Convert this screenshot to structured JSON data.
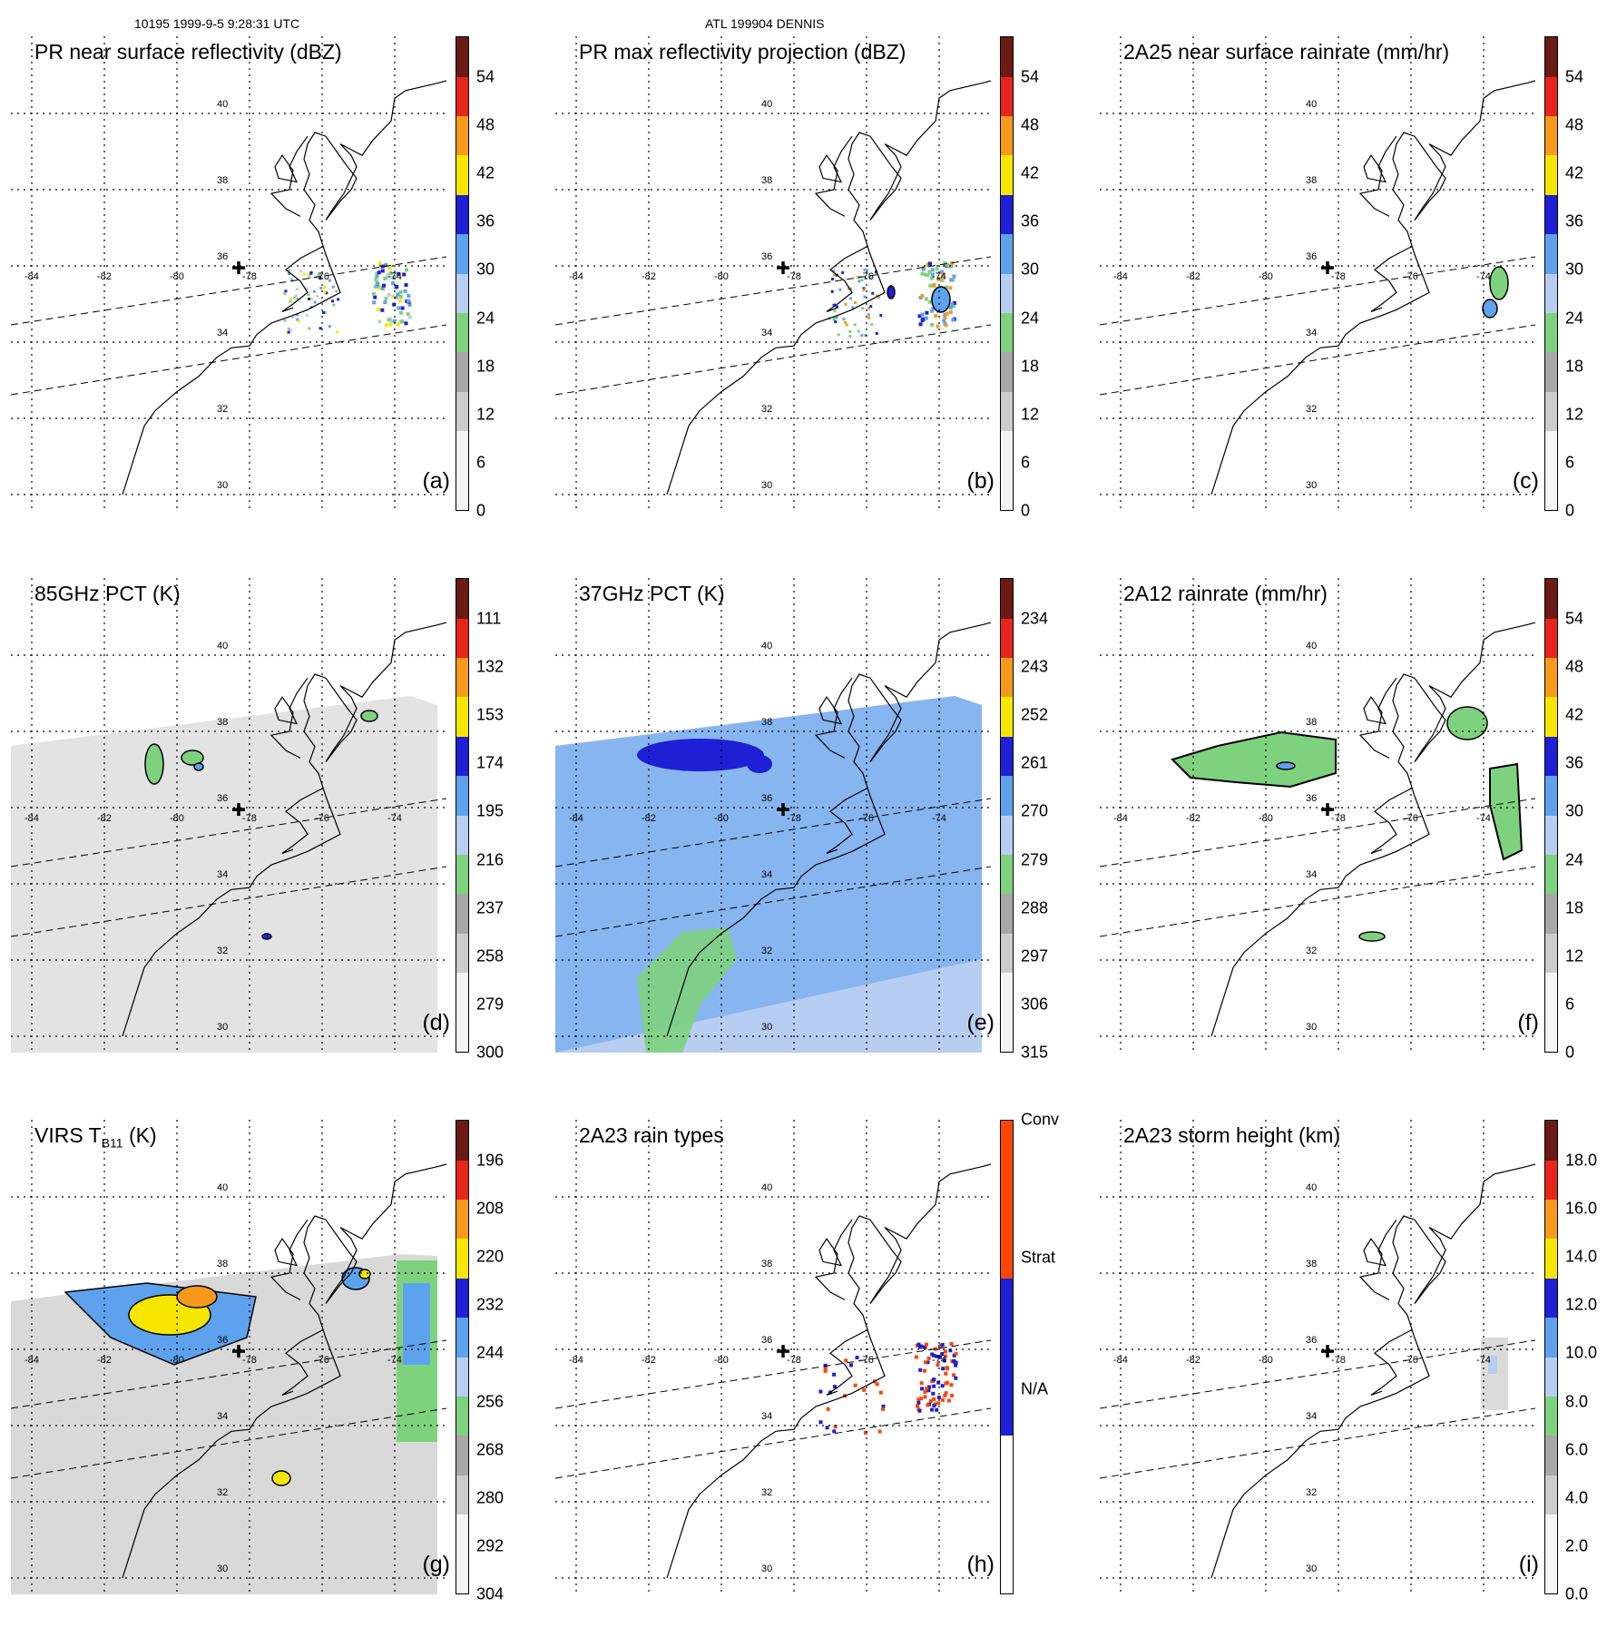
{
  "header": {
    "orbit_time": "10195 1999-9-5 9:28:31 UTC",
    "storm": "ATL 199904 DENNIS"
  },
  "map_labels": {
    "lat": [
      "40",
      "38",
      "36",
      "34",
      "32",
      "30"
    ],
    "lon": [
      "-84",
      "-82",
      "-80",
      "-78",
      "-76",
      "-74"
    ]
  },
  "colors": {
    "gray_light": "#f4f4f4",
    "gray_mid": "#cccccc",
    "gray_dark": "#a8a8a8",
    "green": "#7ed27e",
    "blue_light": "#b8cdf2",
    "blue_mid": "#5ea2ee",
    "blue_dark": "#1f1fd6",
    "yellow": "#f7e700",
    "orange": "#f79a1c",
    "red": "#e8251b",
    "dark_red": "#6b1a14",
    "conv": "#ff4500",
    "strat": "#1f1fd6"
  },
  "panels": [
    {
      "id": "a",
      "title": "PR near surface reflectivity (dBZ)",
      "label": "(a)",
      "ticks": [
        "54",
        "48",
        "42",
        "36",
        "30",
        "24",
        "18",
        "12",
        "6",
        "0"
      ]
    },
    {
      "id": "b",
      "title": "PR max reflectivity projection (dBZ)",
      "label": "(b)",
      "ticks": [
        "54",
        "48",
        "42",
        "36",
        "30",
        "24",
        "18",
        "12",
        "6",
        "0"
      ]
    },
    {
      "id": "c",
      "title": "2A25 near surface rainrate (mm/hr)",
      "label": "(c)",
      "ticks": [
        "54",
        "48",
        "42",
        "36",
        "30",
        "24",
        "18",
        "12",
        "6",
        "0"
      ]
    },
    {
      "id": "d",
      "title": "85GHz PCT (K)",
      "label": "(d)",
      "ticks": [
        "111",
        "132",
        "153",
        "174",
        "195",
        "216",
        "237",
        "258",
        "279",
        "300"
      ]
    },
    {
      "id": "e",
      "title": "37GHz PCT (K)",
      "label": "(e)",
      "ticks": [
        "234",
        "243",
        "252",
        "261",
        "270",
        "279",
        "288",
        "297",
        "306",
        "315"
      ]
    },
    {
      "id": "f",
      "title": "2A12 rainrate (mm/hr)",
      "label": "(f)",
      "ticks": [
        "54",
        "48",
        "42",
        "36",
        "30",
        "24",
        "18",
        "12",
        "6",
        "0"
      ]
    },
    {
      "id": "g",
      "title": "VIRS T",
      "title_sub": "B11",
      "title_end": " (K)",
      "label": "(g)",
      "ticks": [
        "196",
        "208",
        "220",
        "232",
        "244",
        "256",
        "268",
        "280",
        "292",
        "304"
      ]
    },
    {
      "id": "h",
      "title": "2A23 rain types",
      "label": "(h)",
      "ticks": [
        "Conv",
        "Strat",
        "N/A"
      ]
    },
    {
      "id": "i",
      "title": "2A23 storm height (km)",
      "label": "(i)",
      "ticks": [
        "18.0",
        "16.0",
        "14.0",
        "12.0",
        "10.0",
        "8.0",
        "6.0",
        "4.0",
        "2.0",
        "0.0"
      ]
    }
  ]
}
